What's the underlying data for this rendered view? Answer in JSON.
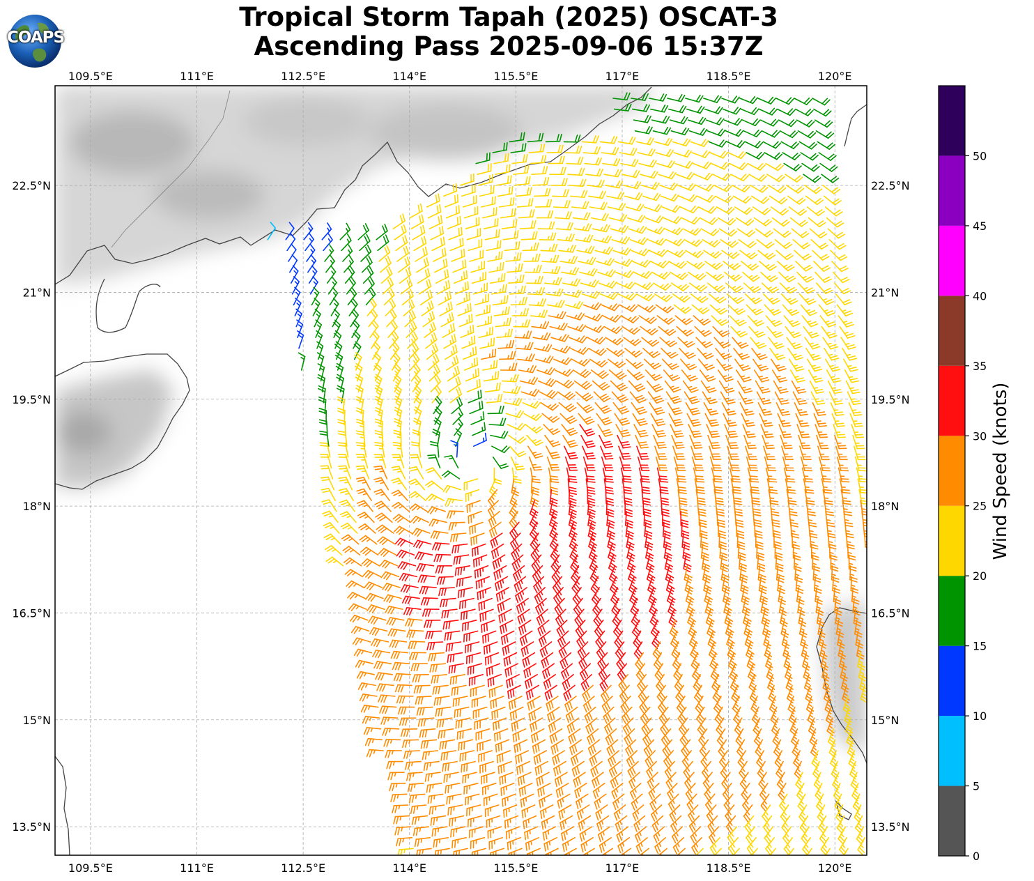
{
  "header": {
    "title_line1": "Tropical Storm Tapah (2025) OSCAT-3",
    "title_line2": "Ascending Pass 2025-09-06 15:37Z",
    "logo_text": "COAPS"
  },
  "map": {
    "lon_range": [
      109.0,
      120.45
    ],
    "lat_range": [
      13.1,
      23.9
    ],
    "lon_ticks": [
      "109.5°E",
      "111°E",
      "112.5°E",
      "114°E",
      "115.5°E",
      "117°E",
      "118.5°E",
      "120°E"
    ],
    "lat_ticks": [
      "22.5°N",
      "21°N",
      "19.5°N",
      "18°N",
      "16.5°N",
      "15°N",
      "13.5°N"
    ],
    "gridlines": true,
    "storm_center_lon": 114.95,
    "storm_center_lat": 18.6
  },
  "colorbar": {
    "title": "Wind Speed (knots)",
    "tick_labels": [
      "0",
      "5",
      "10",
      "15",
      "20",
      "25",
      "30",
      "35",
      "40",
      "45",
      "50"
    ],
    "bins": [
      {
        "min": 0,
        "max": 5,
        "color": "#555555"
      },
      {
        "min": 5,
        "max": 10,
        "color": "#00bfff"
      },
      {
        "min": 10,
        "max": 15,
        "color": "#0038ff"
      },
      {
        "min": 15,
        "max": 20,
        "color": "#009400"
      },
      {
        "min": 20,
        "max": 25,
        "color": "#ffd700"
      },
      {
        "min": 25,
        "max": 30,
        "color": "#ff8c00"
      },
      {
        "min": 30,
        "max": 35,
        "color": "#ff0f0f"
      },
      {
        "min": 35,
        "max": 40,
        "color": "#8b3a2a"
      },
      {
        "min": 40,
        "max": 45,
        "color": "#ff00ff"
      },
      {
        "min": 45,
        "max": 50,
        "color": "#8b00c0"
      },
      {
        "min": 50,
        "max": 55,
        "color": "#2e005c"
      }
    ]
  }
}
